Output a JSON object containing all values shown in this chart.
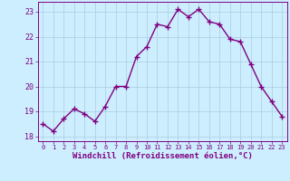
{
  "x": [
    0,
    1,
    2,
    3,
    4,
    5,
    6,
    7,
    8,
    9,
    10,
    11,
    12,
    13,
    14,
    15,
    16,
    17,
    18,
    19,
    20,
    21,
    22,
    23
  ],
  "y": [
    18.5,
    18.2,
    18.7,
    19.1,
    18.9,
    18.6,
    19.2,
    20.0,
    20.0,
    21.2,
    21.6,
    22.5,
    22.4,
    23.1,
    22.8,
    23.1,
    22.6,
    22.5,
    21.9,
    21.8,
    20.9,
    20.0,
    19.4,
    18.8
  ],
  "line_color": "#800080",
  "marker": "+",
  "marker_size": 4,
  "bg_color": "#cceeff",
  "grid_color": "#aaccdd",
  "xlabel": "Windchill (Refroidissement éolien,°C)",
  "xlabel_color": "#800080",
  "tick_color": "#800080",
  "ylim": [
    17.8,
    23.4
  ],
  "xlim": [
    -0.5,
    23.5
  ],
  "yticks": [
    18,
    19,
    20,
    21,
    22,
    23
  ],
  "xticks": [
    0,
    1,
    2,
    3,
    4,
    5,
    6,
    7,
    8,
    9,
    10,
    11,
    12,
    13,
    14,
    15,
    16,
    17,
    18,
    19,
    20,
    21,
    22,
    23
  ],
  "line_width": 1.0,
  "tick_fontsize": 6.0,
  "xlabel_fontsize": 6.5
}
